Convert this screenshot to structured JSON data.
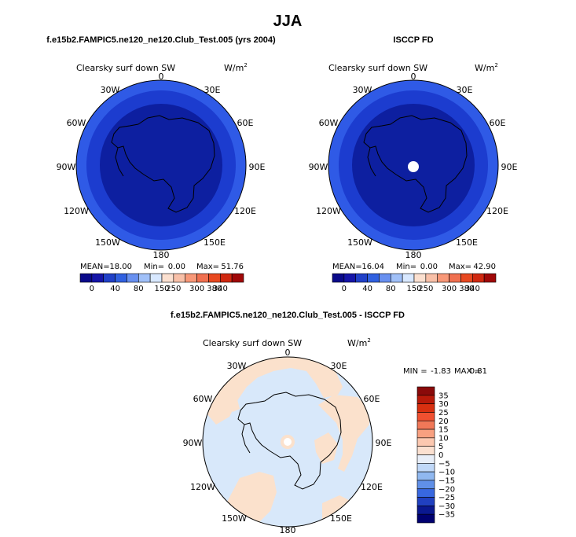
{
  "figure_title": "JJA",
  "colorbar_levels": [
    "0",
    "40",
    "80",
    "150",
    "250",
    "300",
    "340",
    "380"
  ],
  "chart_data": [
    {
      "type": "polar-map",
      "title": "f.e15b2.FAMPIC5.ne120_ne120.Club_Test.005 (yrs 2004)",
      "variable": "Clearsky surf down SW",
      "units": "W/m",
      "units_exp": "2",
      "stats": {
        "mean_label": "MEAN=",
        "mean": "18.00",
        "min_label": "Min=",
        "min": "0.00",
        "max_label": "Max=",
        "max": "51.76"
      },
      "lon_labels": [
        "0",
        "30E",
        "60E",
        "90E",
        "120E",
        "150E",
        "180",
        "150W",
        "120W",
        "90W",
        "60W",
        "30W"
      ],
      "colorbar": {
        "levels": [
          0,
          40,
          80,
          150,
          250,
          300,
          340,
          380
        ],
        "colors": [
          "#0a0a8a",
          "#1515a8",
          "#2040c8",
          "#3060e0",
          "#6890f0",
          "#a0c0f8",
          "#d8e8ff",
          "#fbe0d0",
          "#f8c0a8",
          "#f89878",
          "#f07050",
          "#e84820",
          "#d02810",
          "#a00808"
        ]
      }
    },
    {
      "type": "polar-map",
      "title": "ISCCP FD",
      "variable": "Clearsky surf down SW",
      "units": "W/m",
      "units_exp": "2",
      "stats": {
        "mean_label": "MEAN=",
        "mean": "16.04",
        "min_label": "Min=",
        "min": "0.00",
        "max_label": "Max=",
        "max": "42.90"
      },
      "lon_labels": [
        "0",
        "30E",
        "60E",
        "90E",
        "120E",
        "150E",
        "180",
        "150W",
        "120W",
        "90W",
        "60W",
        "30W"
      ]
    },
    {
      "type": "polar-map",
      "title": "f.e15b2.FAMPIC5.ne120_ne120.Club_Test.005 - ISCCP FD",
      "variable": "Clearsky surf down SW",
      "units": "W/m",
      "units_exp": "2",
      "stats": {
        "min_label": "MIN =",
        "min": "-1.83",
        "max_label": "MAX =",
        "max": "0.81"
      },
      "lon_labels": [
        "0",
        "30E",
        "60E",
        "90E",
        "120E",
        "150E",
        "180",
        "150W",
        "120W",
        "90W",
        "60W",
        "30W"
      ],
      "colorbar": {
        "levels": [
          35,
          30,
          25,
          20,
          15,
          10,
          5,
          0,
          -5,
          -10,
          -15,
          -20,
          -25,
          -30,
          -35
        ],
        "level_labels": [
          "35",
          "30",
          "25",
          "20",
          "15",
          "10",
          "5",
          "0",
          "−5",
          "−10",
          "−15",
          "−20",
          "−25",
          "−30",
          "−35"
        ],
        "colors": [
          "#8a0a0a",
          "#b81a0a",
          "#d83010",
          "#f05030",
          "#f07858",
          "#f8a080",
          "#fcc8b0",
          "#fbe0d0",
          "#e8eef8",
          "#c0d8f8",
          "#90b8f0",
          "#6090e8",
          "#3868e0",
          "#2040c0",
          "#0a1890",
          "#000070"
        ]
      }
    }
  ],
  "colors": {
    "outer_ring": "#2f5ae6",
    "middle_ring": "#1c3ccf",
    "inner_disc": "#0d1fa0",
    "diff_neg": "#d8e8fa",
    "diff_pos": "#fbe1cc",
    "pole_hole": "#ffffff"
  }
}
